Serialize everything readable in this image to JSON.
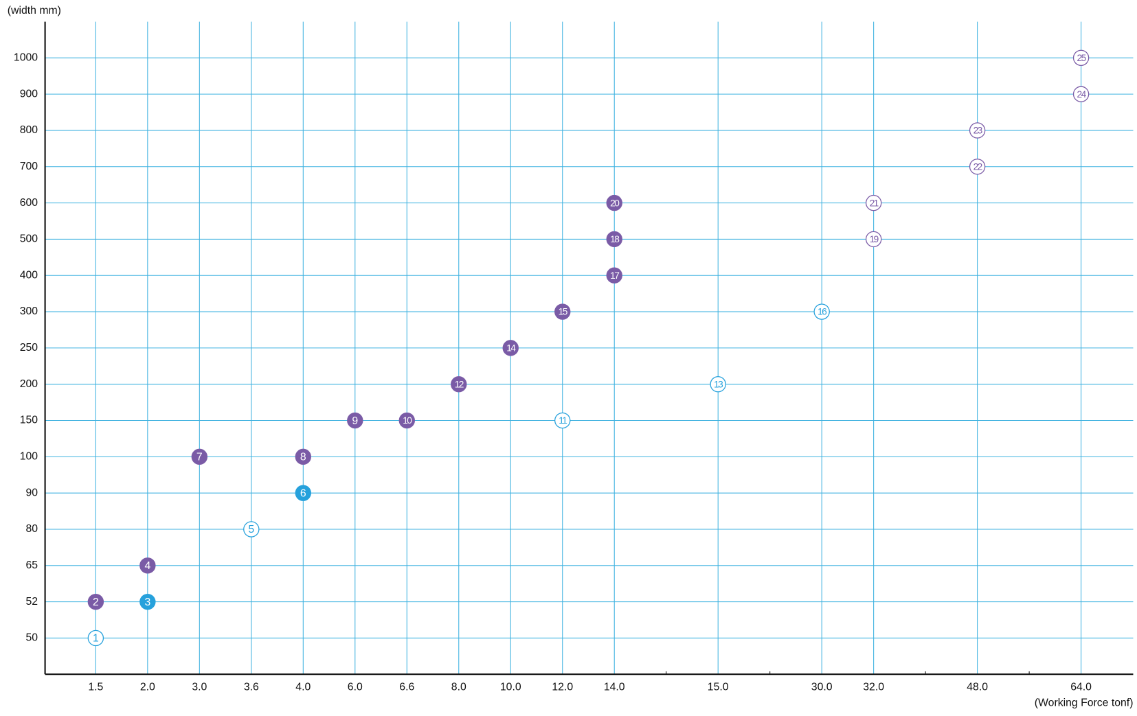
{
  "chart_data": {
    "type": "scatter",
    "y_label": "(width mm)",
    "x_label": "(Working Force tonf)",
    "categories": [
      "1.5",
      "2.0",
      "3.0",
      "3.6",
      "4.0",
      "6.0",
      "6.6",
      "8.0",
      "10.0",
      "12.0",
      "14.0",
      null,
      "15.0",
      null,
      "30.0",
      "32.0",
      null,
      "48.0",
      null,
      "64.0"
    ],
    "yticks": [
      50,
      52,
      65,
      80,
      90,
      100,
      150,
      200,
      250,
      300,
      400,
      500,
      600,
      700,
      800,
      900,
      1000
    ],
    "grid": true,
    "grid_color": "#3fb2e0",
    "series": [
      {
        "color": "#7a5ba6",
        "filled": true,
        "labels": [
          "2",
          "4",
          "7",
          "8",
          "9",
          "10",
          "12",
          "14",
          "15",
          "17",
          "18",
          "20"
        ],
        "x": [
          1.5,
          2.0,
          3.0,
          4.0,
          6.0,
          6.6,
          8.0,
          10.0,
          12.0,
          14.0,
          14.0,
          14.0
        ],
        "values": [
          52,
          65,
          100,
          100,
          150,
          150,
          200,
          250,
          300,
          400,
          500,
          600
        ]
      },
      {
        "color": "#26a1dc",
        "filled": true,
        "labels": [
          "3",
          "6"
        ],
        "x": [
          2.0,
          4.0
        ],
        "values": [
          52,
          90
        ]
      },
      {
        "color": "#26a1dc",
        "filled": false,
        "labels": [
          "1",
          "5",
          "11",
          "13",
          "16"
        ],
        "x": [
          1.5,
          3.6,
          12.0,
          15.0,
          30.0
        ],
        "values": [
          50,
          80,
          150,
          200,
          300
        ]
      },
      {
        "color": "#7a5ba6",
        "filled": false,
        "labels": [
          "19",
          "21",
          "22",
          "23",
          "24",
          "25"
        ],
        "x": [
          32.0,
          32.0,
          48.0,
          48.0,
          64.0,
          64.0
        ],
        "values": [
          500,
          600,
          700,
          800,
          900,
          1000
        ]
      }
    ]
  }
}
